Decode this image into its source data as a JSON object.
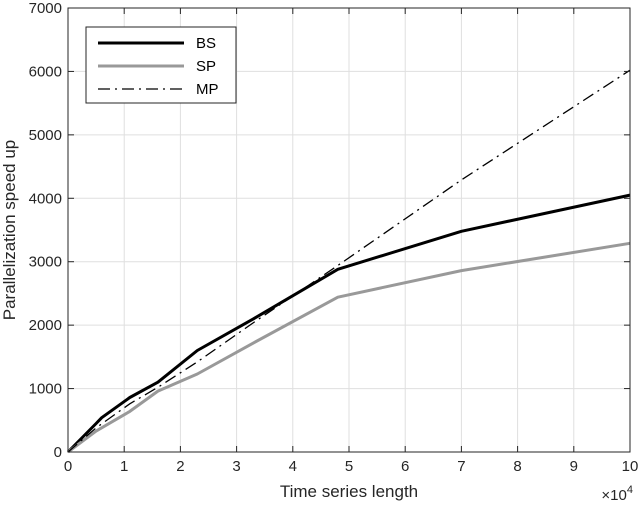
{
  "chart_data": {
    "type": "line",
    "xlabel": "Time series length",
    "ylabel": "Parallelization speed up",
    "x_exponent_label": "×10",
    "x_exponent_power": "4",
    "xlim": [
      0,
      10
    ],
    "ylim": [
      0,
      7000
    ],
    "xticks": [
      0,
      1,
      2,
      3,
      4,
      5,
      6,
      7,
      8,
      9,
      10
    ],
    "yticks": [
      0,
      1000,
      2000,
      3000,
      4000,
      5000,
      6000,
      7000
    ],
    "grid": true,
    "legend_position": "top-left",
    "series": [
      {
        "name": "BS",
        "color": "#000000",
        "style": "solid",
        "x": [
          0,
          0.5,
          0.6,
          1.1,
          1.6,
          2.3,
          3.3,
          4.8,
          7.0,
          10.0
        ],
        "y": [
          0,
          450,
          540,
          860,
          1100,
          1600,
          2100,
          2880,
          3480,
          4050
        ]
      },
      {
        "name": "SP",
        "color": "#999999",
        "style": "solid",
        "x": [
          0,
          0.5,
          1.1,
          1.6,
          2.3,
          3.3,
          4.8,
          7.0,
          10.0
        ],
        "y": [
          0,
          330,
          640,
          960,
          1230,
          1720,
          2440,
          2860,
          3290
        ]
      },
      {
        "name": "MP",
        "color": "#000000",
        "style": "dashdot",
        "x": [
          0,
          0.5,
          1.1,
          1.6,
          2.3,
          3.3,
          4.8,
          7.0,
          10.0
        ],
        "y": [
          0,
          380,
          760,
          1020,
          1420,
          2040,
          2940,
          4290,
          6020
        ]
      }
    ]
  }
}
